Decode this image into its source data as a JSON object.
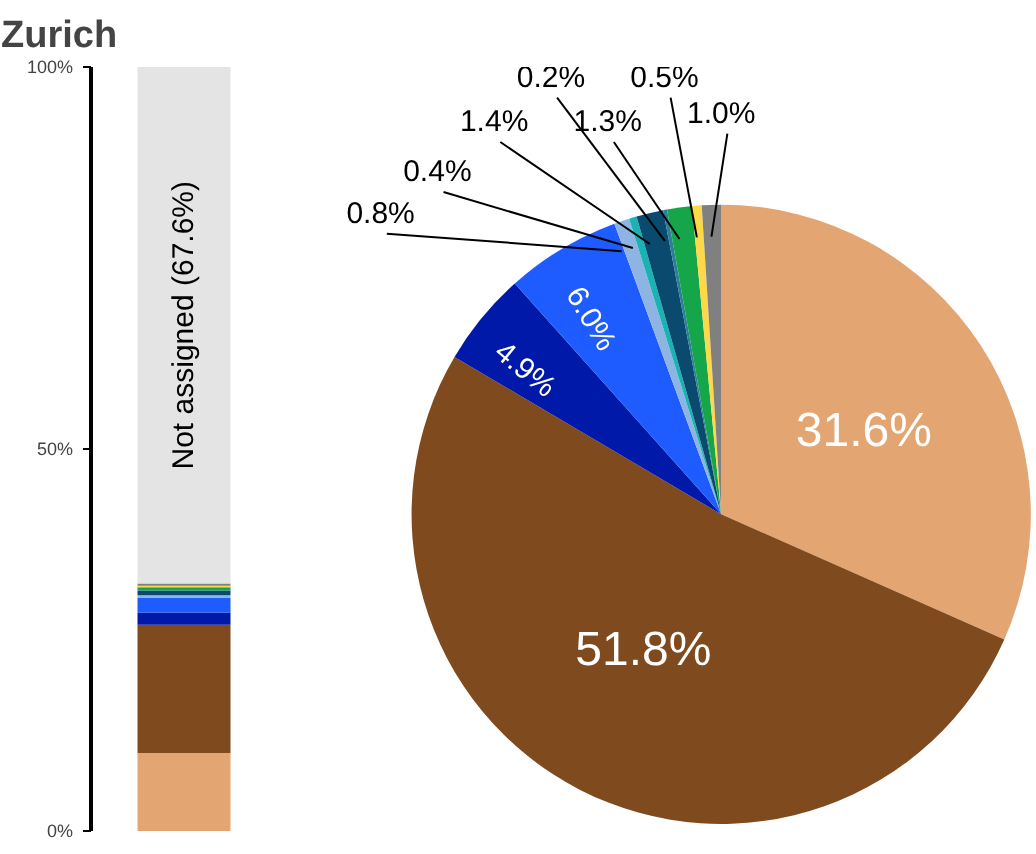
{
  "chart_data": [
    {
      "type": "bar",
      "title": "Zurich",
      "stacked": true,
      "categories": [
        null
      ],
      "ylim": [
        0,
        100
      ],
      "yticks": [
        {
          "value": 0,
          "label": "0%"
        },
        {
          "value": 50,
          "label": "50%"
        },
        {
          "value": 100,
          "label": "100%"
        }
      ],
      "tick_labels": "y",
      "series": [
        {
          "color": "#e3a673",
          "values": [
            10.2
          ]
        },
        {
          "color": "#7f4a1e",
          "values": [
            16.8
          ]
        },
        {
          "color": "#0019a8",
          "values": [
            1.6
          ]
        },
        {
          "color": "#1f5cff",
          "values": [
            1.9
          ]
        },
        {
          "color": "#8eb4e3",
          "values": [
            0.3
          ]
        },
        {
          "color": "#1ab3b3",
          "values": [
            0.1
          ]
        },
        {
          "color": "#0b4a6f",
          "values": [
            0.5
          ]
        },
        {
          "color": "#2e7d99",
          "values": [
            0.1
          ]
        },
        {
          "color": "#16a64a",
          "values": [
            0.4
          ]
        },
        {
          "color": "#ffd84a",
          "values": [
            0.2
          ]
        },
        {
          "color": "#808080",
          "values": [
            0.3
          ]
        },
        {
          "name": "Not assigned (67.6%)",
          "color": "#e4e4e4",
          "values": [
            67.6
          ]
        }
      ]
    },
    {
      "type": "pie",
      "categories": [
        null,
        null,
        null,
        null,
        null,
        null,
        null,
        null,
        null,
        null,
        null
      ],
      "values": [
        31.6,
        51.8,
        4.9,
        6.0,
        0.8,
        0.4,
        1.4,
        0.2,
        1.3,
        0.5,
        1.0
      ],
      "colors": [
        "#e3a673",
        "#7f4a1e",
        "#0019a8",
        "#1f5cff",
        "#8eb4e3",
        "#1ab3b3",
        "#0b4a6f",
        "#2e7d99",
        "#16a64a",
        "#ffd84a",
        "#808080"
      ],
      "value_labels": [
        "31.6%",
        "51.8%",
        "4.9%",
        "6.0%",
        "0.8%",
        "0.4%",
        "1.4%",
        "0.2%",
        "1.3%",
        "0.5%",
        "1.0%"
      ]
    }
  ]
}
